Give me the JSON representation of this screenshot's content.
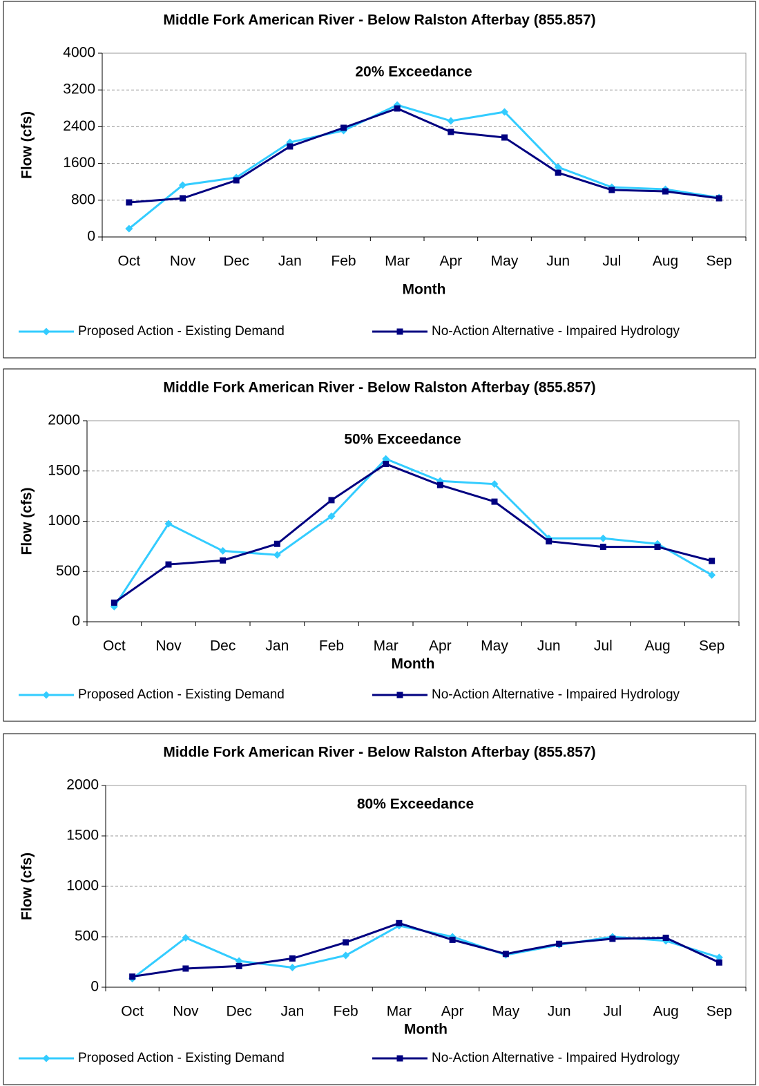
{
  "chart_data": [
    {
      "type": "line",
      "title": "Middle Fork American River - Below Ralston Afterbay (855.857)",
      "annotation": "20% Exceedance",
      "x_label": "Month",
      "y_label": "Flow (cfs)",
      "categories": [
        "Oct",
        "Nov",
        "Dec",
        "Jan",
        "Feb",
        "Mar",
        "Apr",
        "May",
        "Jun",
        "Jul",
        "Aug",
        "Sep"
      ],
      "ylim": [
        0,
        4000
      ],
      "yticks": [
        0,
        800,
        1600,
        2400,
        3200,
        4000
      ],
      "grid": true,
      "legend": "bottom",
      "series": [
        {
          "name": "Proposed Action - Existing Demand",
          "color": "#33ccff",
          "marker": "diamond",
          "values": [
            180,
            1128,
            1293,
            2060,
            2316,
            2872,
            2526,
            2722,
            1519,
            1083,
            1038,
            857
          ]
        },
        {
          "name": "No-Action Alternative - Impaired Hydrology",
          "color": "#000080",
          "marker": "square",
          "values": [
            752,
            842,
            1233,
            1970,
            2376,
            2797,
            2286,
            2165,
            1398,
            1023,
            992,
            842
          ]
        }
      ]
    },
    {
      "type": "line",
      "title": "Middle Fork American River - Below Ralston Afterbay (855.857)",
      "annotation": "50% Exceedance",
      "x_label": "Month",
      "y_label": "Flow (cfs)",
      "categories": [
        "Oct",
        "Nov",
        "Dec",
        "Jan",
        "Feb",
        "Mar",
        "Apr",
        "May",
        "Jun",
        "Jul",
        "Aug",
        "Sep"
      ],
      "ylim": [
        0,
        2000
      ],
      "yticks": [
        0,
        500,
        1000,
        1500,
        2000
      ],
      "grid": true,
      "legend": "bottom",
      "series": [
        {
          "name": "Proposed Action - Existing Demand",
          "color": "#33ccff",
          "marker": "diamond",
          "values": [
            150,
            975,
            705,
            665,
            1050,
            1620,
            1400,
            1370,
            830,
            830,
            775,
            465
          ]
        },
        {
          "name": "No-Action Alternative - Impaired Hydrology",
          "color": "#000080",
          "marker": "square",
          "values": [
            190,
            570,
            610,
            775,
            1210,
            1570,
            1360,
            1195,
            800,
            745,
            745,
            605
          ]
        }
      ]
    },
    {
      "type": "line",
      "title": "Middle Fork American River - Below Ralston Afterbay (855.857)",
      "annotation": "80% Exceedance",
      "x_label": "Month",
      "y_label": "Flow (cfs)",
      "categories": [
        "Oct",
        "Nov",
        "Dec",
        "Jan",
        "Feb",
        "Mar",
        "Apr",
        "May",
        "Jun",
        "Jul",
        "Aug",
        "Sep"
      ],
      "ylim": [
        0,
        2000
      ],
      "yticks": [
        0,
        500,
        1000,
        1500,
        2000
      ],
      "grid": true,
      "legend": "bottom",
      "series": [
        {
          "name": "Proposed Action - Existing Demand",
          "color": "#33ccff",
          "marker": "diamond",
          "values": [
            85,
            490,
            260,
            195,
            315,
            610,
            500,
            320,
            420,
            500,
            460,
            295
          ]
        },
        {
          "name": "No-Action Alternative - Impaired Hydrology",
          "color": "#000080",
          "marker": "square",
          "values": [
            105,
            185,
            210,
            285,
            445,
            635,
            470,
            330,
            430,
            480,
            490,
            245
          ]
        }
      ]
    }
  ]
}
